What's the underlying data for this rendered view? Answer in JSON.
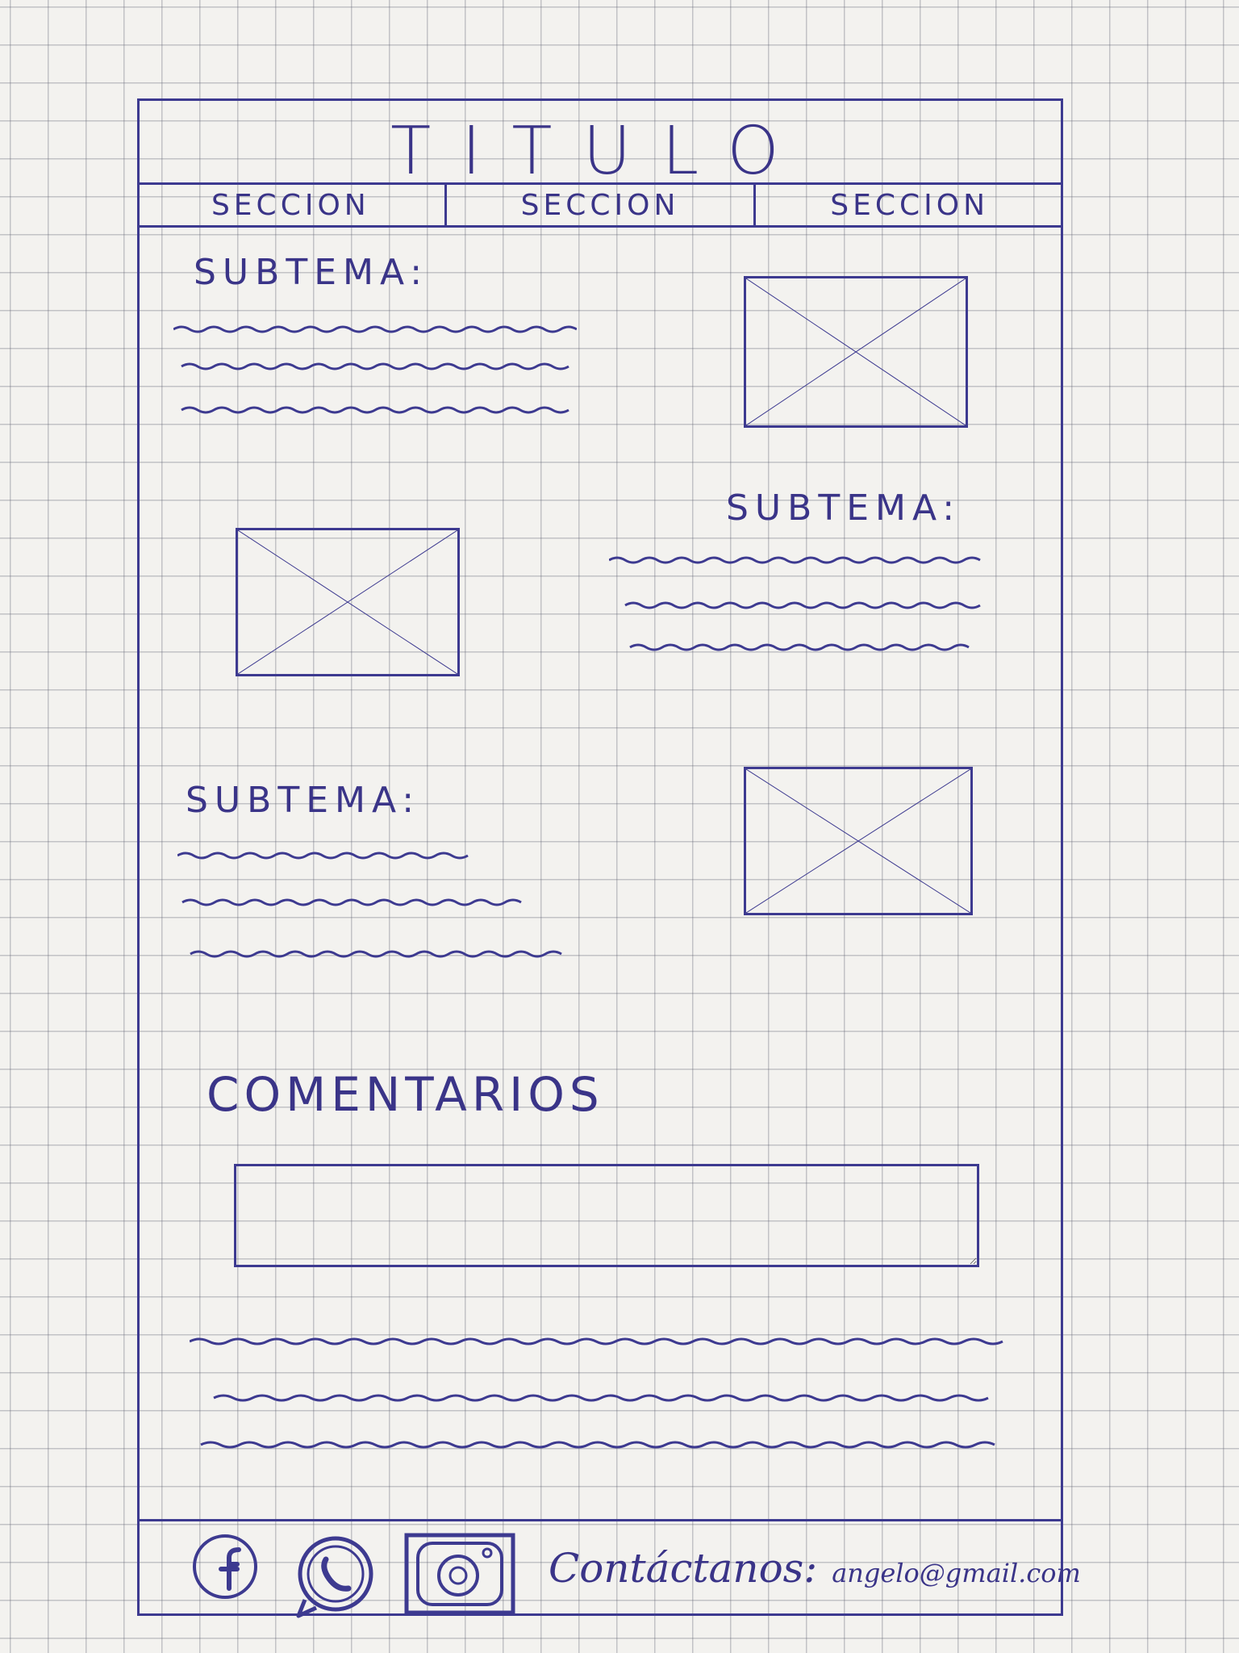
{
  "header": {
    "title": "TITULO"
  },
  "nav": {
    "tabs": [
      "SECCION",
      "SECCION",
      "SECCION"
    ]
  },
  "sections": [
    {
      "subtitle": "SUBTEMA:"
    },
    {
      "subtitle": "SUBTEMA:"
    },
    {
      "subtitle": "SUBTEMA:"
    }
  ],
  "comments": {
    "heading": "COMENTARIOS",
    "placeholder": ""
  },
  "footer": {
    "social": [
      "facebook-icon",
      "whatsapp-icon",
      "instagram-icon"
    ],
    "contact_label": "Contáctanos:",
    "contact_email": "angelo@gmail.com"
  },
  "colors": {
    "ink": "#3a3488",
    "paper": "#f3f2ef",
    "grid": "#5a5f6e"
  }
}
